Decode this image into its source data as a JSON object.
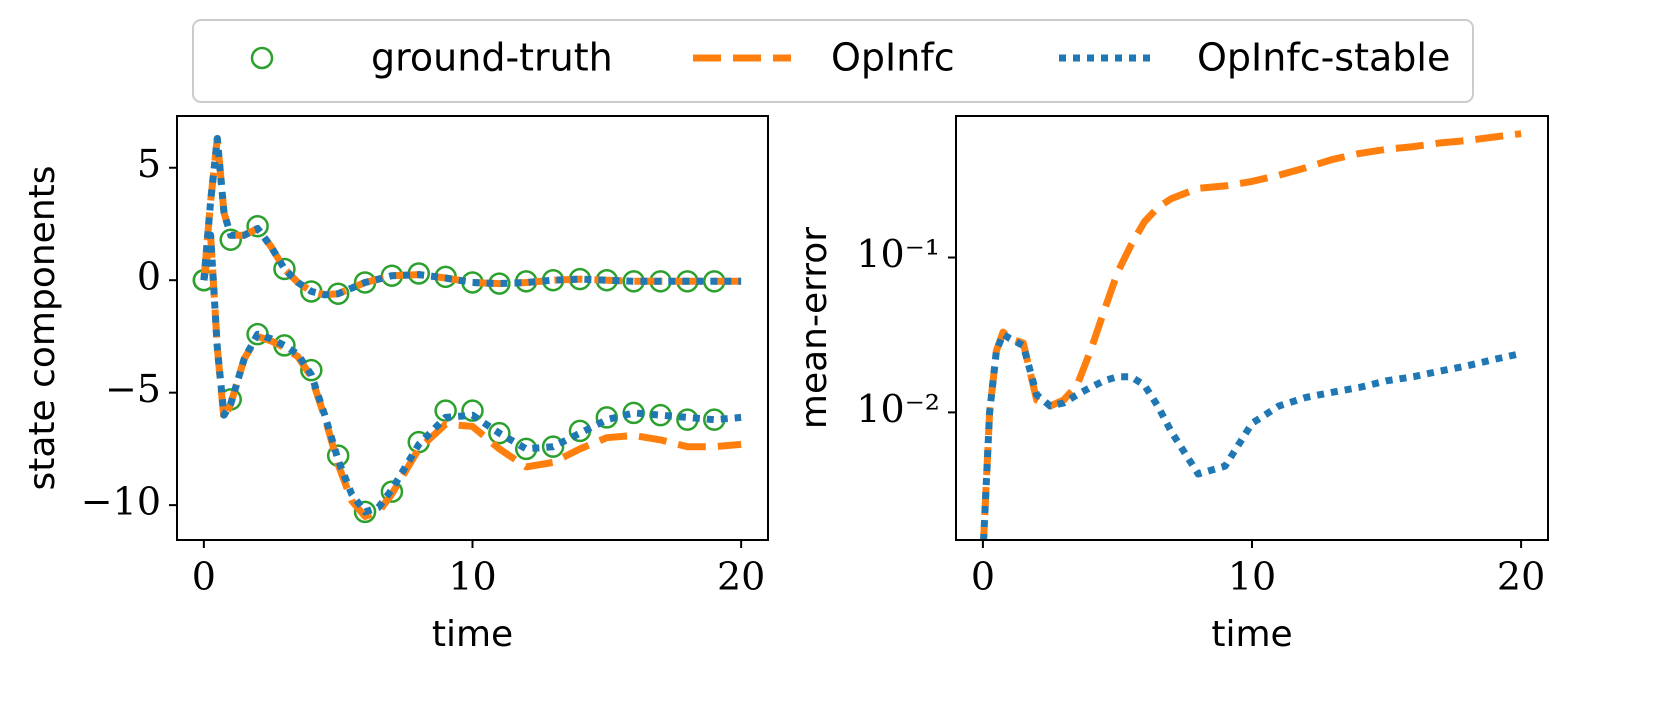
{
  "chart_data": [
    {
      "type": "line",
      "xlabel": "time",
      "ylabel": "state components",
      "legend": "upper center",
      "xlim": [
        -1,
        21
      ],
      "ylim": [
        -11.55,
        7.3
      ],
      "xticks": [
        0,
        10,
        20
      ],
      "yticks": [
        {
          "value": -10,
          "label": "−10"
        },
        {
          "value": -5,
          "label": "−5"
        },
        0,
        5
      ],
      "series": [
        {
          "name": "ground-truth",
          "color": "#2ca02c",
          "marker": "circle",
          "x": [
            0,
            1,
            2,
            3,
            4,
            5,
            6,
            7,
            8,
            9,
            10,
            11,
            12,
            13,
            14,
            15,
            16,
            17,
            18,
            19
          ],
          "values": [
            [
              0,
              1.8,
              2.4,
              0.5,
              -0.5,
              -0.6,
              -0.1,
              0.2,
              0.3,
              0.15,
              -0.1,
              -0.15,
              -0.05,
              0,
              0.05,
              0,
              -0.05,
              -0.05,
              -0.05,
              -0.05
            ],
            [
              0,
              -5.3,
              -2.4,
              -2.9,
              -4.0,
              -7.8,
              -10.3,
              -9.4,
              -7.2,
              -5.8,
              -5.8,
              -6.8,
              -7.5,
              -7.4,
              -6.7,
              -6.1,
              -5.9,
              -6.0,
              -6.2,
              -6.2
            ]
          ]
        },
        {
          "name": "OpInfc",
          "color": "#ff7f0e",
          "linestyle": "dashed",
          "x": [
            0,
            0.25,
            0.5,
            0.75,
            1,
            1.5,
            2,
            2.5,
            3,
            3.5,
            4,
            4.5,
            5,
            5.5,
            6,
            6.5,
            7,
            8,
            9,
            10,
            11,
            12,
            13,
            14,
            15,
            16,
            17,
            18,
            19,
            20
          ],
          "values": [
            [
              0,
              3.5,
              6.3,
              3,
              2,
              2,
              2.3,
              1.5,
              0.5,
              -0.1,
              -0.5,
              -0.65,
              -0.6,
              -0.35,
              -0.1,
              0.05,
              0.2,
              0.25,
              0.1,
              -0.1,
              -0.15,
              -0.1,
              0,
              0.05,
              0,
              -0.05,
              -0.05,
              -0.05,
              -0.05,
              -0.05
            ],
            [
              0,
              2,
              -3,
              -6.2,
              -5.5,
              -3.5,
              -2.5,
              -2.7,
              -3.0,
              -3.4,
              -4.3,
              -6.1,
              -8.2,
              -9.8,
              -10.5,
              -10.3,
              -9.5,
              -7.5,
              -6.4,
              -6.5,
              -7.5,
              -8.3,
              -8.1,
              -7.5,
              -7.0,
              -6.9,
              -7.1,
              -7.4,
              -7.4,
              -7.3
            ]
          ]
        },
        {
          "name": "OpInfc-stable",
          "color": "#1f77b4",
          "linestyle": "dotted",
          "x": [
            0,
            0.25,
            0.5,
            0.75,
            1,
            1.5,
            2,
            2.5,
            3,
            3.5,
            4,
            4.5,
            5,
            5.5,
            6,
            6.5,
            7,
            8,
            9,
            10,
            11,
            12,
            13,
            14,
            15,
            16,
            17,
            18,
            19,
            20
          ],
          "values": [
            [
              0,
              3.5,
              6.3,
              3,
              2,
              2,
              2.3,
              1.5,
              0.5,
              -0.1,
              -0.5,
              -0.65,
              -0.6,
              -0.35,
              -0.1,
              0.05,
              0.2,
              0.25,
              0.1,
              -0.1,
              -0.15,
              -0.1,
              0,
              0.05,
              0,
              -0.05,
              -0.05,
              -0.05,
              -0.05,
              -0.05
            ],
            [
              0,
              2,
              -3,
              -6,
              -5.5,
              -3.5,
              -2.4,
              -2.6,
              -2.9,
              -3.3,
              -4.2,
              -6,
              -8,
              -9.5,
              -10.3,
              -10.1,
              -9.3,
              -7.3,
              -6.1,
              -6.0,
              -6.8,
              -7.5,
              -7.4,
              -6.8,
              -6.2,
              -5.9,
              -6.0,
              -6.1,
              -6.2,
              -6.1
            ]
          ]
        }
      ]
    },
    {
      "type": "line",
      "xlabel": "time",
      "ylabel": "mean-error",
      "yscale": "log",
      "xlim": [
        -1,
        21
      ],
      "ylim": [
        0.0015,
        0.82
      ],
      "xticks": [
        0,
        10,
        20
      ],
      "yticks": [
        {
          "value": 0.01,
          "label": "10⁻²"
        },
        {
          "value": 0.1,
          "label": "10⁻¹"
        }
      ],
      "series": [
        {
          "color": "#ff7f0e",
          "linestyle": "dashed",
          "x": [
            0,
            0.25,
            0.5,
            0.75,
            1,
            1.5,
            2,
            2.5,
            3,
            3.5,
            4,
            4.5,
            5,
            5.5,
            6,
            6.5,
            7,
            8,
            9,
            10,
            11,
            12,
            13,
            14,
            15,
            16,
            17,
            18,
            19,
            20
          ],
          "values": [
            0.0012,
            0.01,
            0.025,
            0.033,
            0.03,
            0.028,
            0.012,
            0.011,
            0.012,
            0.015,
            0.025,
            0.045,
            0.08,
            0.12,
            0.17,
            0.21,
            0.24,
            0.28,
            0.29,
            0.31,
            0.34,
            0.38,
            0.43,
            0.47,
            0.5,
            0.52,
            0.55,
            0.57,
            0.6,
            0.63
          ]
        },
        {
          "color": "#1f77b4",
          "linestyle": "dotted",
          "x": [
            0,
            0.25,
            0.5,
            0.75,
            1,
            1.5,
            2,
            2.5,
            3,
            3.5,
            4,
            4.5,
            5,
            5.5,
            6,
            6.5,
            7,
            8,
            9,
            10,
            11,
            12,
            13,
            14,
            15,
            16,
            17,
            18,
            19,
            20
          ],
          "values": [
            0.0012,
            0.01,
            0.025,
            0.032,
            0.03,
            0.027,
            0.013,
            0.011,
            0.0115,
            0.013,
            0.0145,
            0.016,
            0.017,
            0.017,
            0.015,
            0.011,
            0.0075,
            0.004,
            0.0045,
            0.0085,
            0.011,
            0.0125,
            0.0135,
            0.0145,
            0.016,
            0.017,
            0.0185,
            0.02,
            0.022,
            0.024
          ]
        }
      ]
    }
  ]
}
